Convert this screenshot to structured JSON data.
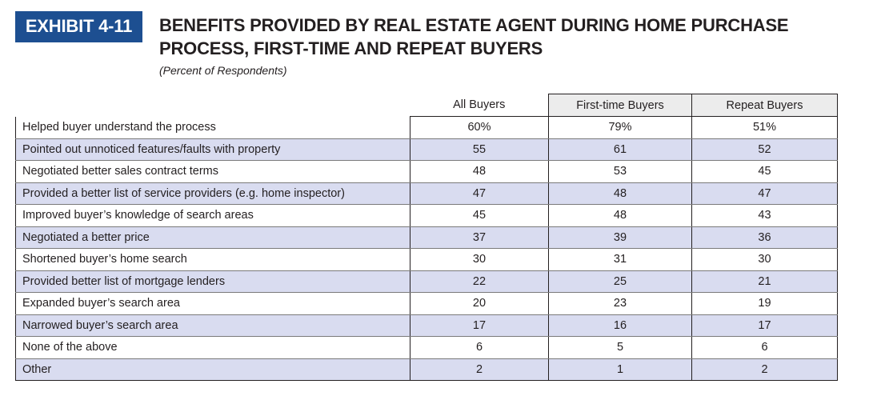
{
  "exhibit": {
    "label": "EXHIBIT 4-11",
    "title": "BENEFITS PROVIDED BY REAL ESTATE AGENT DURING HOME PURCHASE PROCESS, FIRST-TIME AND REPEAT BUYERS",
    "subtitle": "(Percent of Respondents)"
  },
  "colors": {
    "accent": "#1d4f91",
    "row_stripe": "#d9dcf0",
    "header_fill": "#ececec"
  },
  "chart_data": {
    "type": "table",
    "title": "BENEFITS PROVIDED BY REAL ESTATE AGENT DURING HOME PURCHASE PROCESS, FIRST-TIME AND REPEAT BUYERS",
    "subtitle": "(Percent of Respondents)",
    "columns": [
      "All Buyers",
      "First-time Buyers",
      "Repeat Buyers"
    ],
    "rows": [
      {
        "label": "Helped buyer understand the process",
        "values": [
          "60%",
          "79%",
          "51%"
        ]
      },
      {
        "label": "Pointed out unnoticed features/faults with property",
        "values": [
          "55",
          "61",
          "52"
        ]
      },
      {
        "label": "Negotiated better sales contract terms",
        "values": [
          "48",
          "53",
          "45"
        ]
      },
      {
        "label": "Provided a better list of service providers (e.g. home inspector)",
        "values": [
          "47",
          "48",
          "47"
        ]
      },
      {
        "label": "Improved buyer’s knowledge of search areas",
        "values": [
          "45",
          "48",
          "43"
        ]
      },
      {
        "label": "Negotiated a better price",
        "values": [
          "37",
          "39",
          "36"
        ]
      },
      {
        "label": "Shortened buyer’s home search",
        "values": [
          "30",
          "31",
          "30"
        ]
      },
      {
        "label": "Provided better list of mortgage lenders",
        "values": [
          "22",
          "25",
          "21"
        ]
      },
      {
        "label": "Expanded buyer’s search area",
        "values": [
          "20",
          "23",
          "19"
        ]
      },
      {
        "label": "Narrowed buyer’s search area",
        "values": [
          "17",
          "16",
          "17"
        ]
      },
      {
        "label": "None of the above",
        "values": [
          "6",
          "5",
          "6"
        ]
      },
      {
        "label": "Other",
        "values": [
          "2",
          "1",
          "2"
        ]
      }
    ]
  }
}
